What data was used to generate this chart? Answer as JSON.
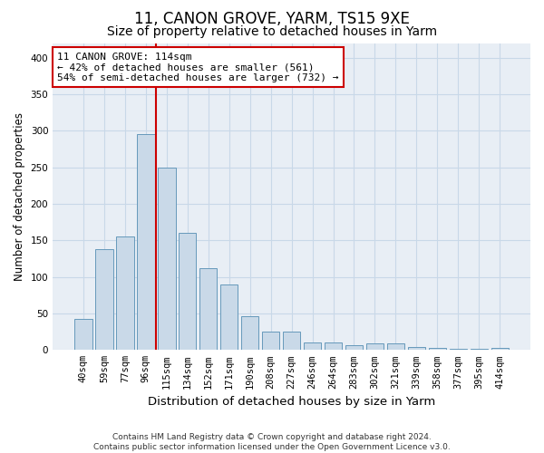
{
  "title": "11, CANON GROVE, YARM, TS15 9XE",
  "subtitle": "Size of property relative to detached houses in Yarm",
  "xlabel": "Distribution of detached houses by size in Yarm",
  "ylabel": "Number of detached properties",
  "categories": [
    "40sqm",
    "59sqm",
    "77sqm",
    "96sqm",
    "115sqm",
    "134sqm",
    "152sqm",
    "171sqm",
    "190sqm",
    "208sqm",
    "227sqm",
    "246sqm",
    "264sqm",
    "283sqm",
    "302sqm",
    "321sqm",
    "339sqm",
    "358sqm",
    "377sqm",
    "395sqm",
    "414sqm"
  ],
  "values": [
    42,
    138,
    155,
    295,
    250,
    160,
    112,
    90,
    46,
    25,
    25,
    10,
    10,
    6,
    9,
    9,
    4,
    3,
    2,
    2,
    3
  ],
  "bar_color": "#c9d9e8",
  "bar_edge_color": "#6699bb",
  "property_label": "11 CANON GROVE: 114sqm",
  "annotation_line1": "← 42% of detached houses are smaller (561)",
  "annotation_line2": "54% of semi-detached houses are larger (732) →",
  "annotation_box_color": "#ffffff",
  "annotation_box_edge": "#cc0000",
  "vline_color": "#cc0000",
  "vline_x": 3.5,
  "ylim": [
    0,
    420
  ],
  "yticks": [
    0,
    50,
    100,
    150,
    200,
    250,
    300,
    350,
    400
  ],
  "grid_color": "#c8d8e8",
  "bg_color": "#e8eef5",
  "footer_line1": "Contains HM Land Registry data © Crown copyright and database right 2024.",
  "footer_line2": "Contains public sector information licensed under the Open Government Licence v3.0.",
  "title_fontsize": 12,
  "subtitle_fontsize": 10,
  "xlabel_fontsize": 9.5,
  "ylabel_fontsize": 8.5,
  "tick_fontsize": 7.5,
  "annotation_fontsize": 8,
  "footer_fontsize": 6.5
}
